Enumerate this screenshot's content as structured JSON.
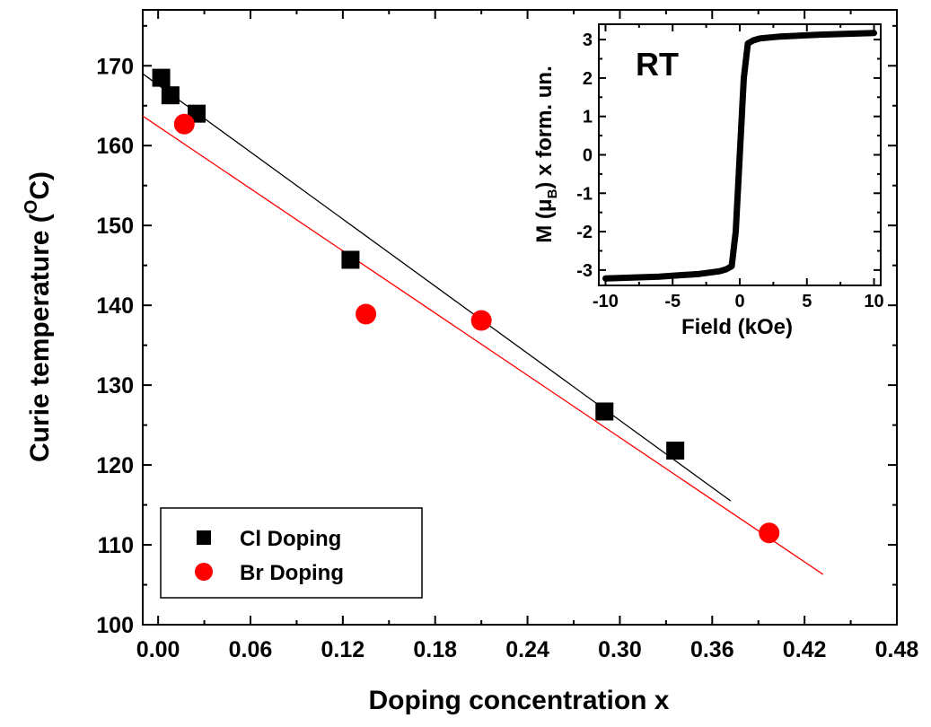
{
  "chart_data": [
    {
      "type": "scatter",
      "xlabel": "Doping concentration x",
      "ylabel_main": "Curie temperature (",
      "ylabel_sup": "O",
      "ylabel_end": "C)",
      "xlim": [
        -0.01,
        0.48
      ],
      "ylim": [
        100,
        177
      ],
      "x_ticks": [
        "0.00",
        "0.06",
        "0.12",
        "0.18",
        "0.24",
        "0.30",
        "0.36",
        "0.42",
        "0.48"
      ],
      "y_ticks": [
        "100",
        "110",
        "120",
        "130",
        "140",
        "150",
        "160",
        "170"
      ],
      "series": [
        {
          "name": "Cl Doping",
          "marker": "square",
          "color": "#000000",
          "points": [
            {
              "x": 0.002,
              "y": 168.5
            },
            {
              "x": 0.008,
              "y": 166.3
            },
            {
              "x": 0.025,
              "y": 164.0
            },
            {
              "x": 0.125,
              "y": 145.7
            },
            {
              "x": 0.29,
              "y": 126.7
            },
            {
              "x": 0.336,
              "y": 121.8
            }
          ],
          "fit": {
            "x1": -0.01,
            "y1": 169.0,
            "x2": 0.372,
            "y2": 115.5
          }
        },
        {
          "name": "Br Doping",
          "marker": "circle",
          "color": "#ff0000",
          "points": [
            {
              "x": 0.017,
              "y": 162.7
            },
            {
              "x": 0.135,
              "y": 138.9
            },
            {
              "x": 0.21,
              "y": 138.1
            },
            {
              "x": 0.397,
              "y": 111.5
            }
          ],
          "fit": {
            "x1": -0.01,
            "y1": 163.7,
            "x2": 0.432,
            "y2": 106.3
          }
        }
      ],
      "legend_position": "bottom-left"
    },
    {
      "type": "line",
      "annotation": "RT",
      "xlabel": "Field (kOe)",
      "ylabel_a": "M (",
      "ylabel_mu": "μ",
      "ylabel_sub": "B",
      "ylabel_b": ") x form. un.",
      "xlim": [
        -10.5,
        10.5
      ],
      "ylim": [
        -3.4,
        3.4
      ],
      "x_ticks": [
        "-10",
        "-5",
        "0",
        "5",
        "10"
      ],
      "y_ticks": [
        "-3",
        "-2",
        "-1",
        "0",
        "1",
        "2",
        "3"
      ],
      "series": [
        {
          "color": "#000000",
          "x": [
            -10,
            -6,
            -3,
            -1.5,
            -1,
            -0.6,
            -0.3,
            0,
            0.3,
            0.6,
            1,
            1.5,
            3,
            6,
            10
          ],
          "y": [
            -3.22,
            -3.17,
            -3.1,
            -3.03,
            -2.98,
            -2.9,
            -2.0,
            0,
            2.0,
            2.9,
            2.98,
            3.03,
            3.08,
            3.13,
            3.17
          ]
        }
      ]
    }
  ]
}
